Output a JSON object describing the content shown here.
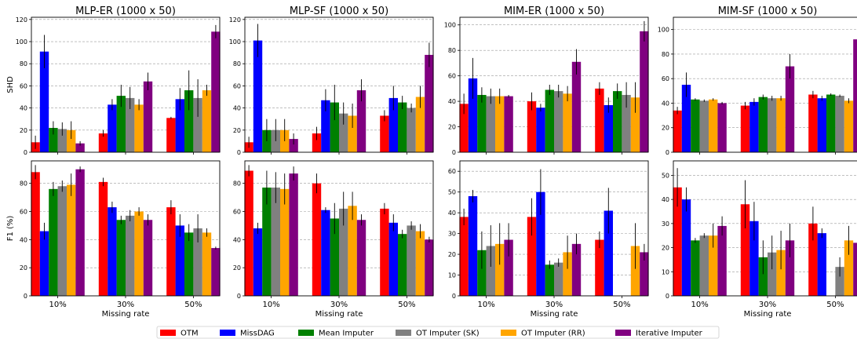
{
  "chart_data": {
    "type": "bar",
    "xlabel": "Missing rate",
    "categories": [
      "10%",
      "30%",
      "50%"
    ],
    "series_names": [
      "OTM",
      "MissDAG",
      "Mean Imputer",
      "OT Imputer (SK)",
      "OT Imputer (RR)",
      "Iterative Imputer"
    ],
    "colors": [
      "#ff0000",
      "#0000ff",
      "#008000",
      "#808080",
      "#ffa500",
      "#800080"
    ],
    "grid": "y-dashed",
    "legend_position": "bottom-center",
    "panels": [
      {
        "title": "MLP-ER (1000 x 50)",
        "ylabel": "SHD",
        "ylim": [
          0,
          122
        ],
        "yticks": [
          0,
          20,
          40,
          60,
          80,
          100,
          120
        ],
        "values": [
          [
            9,
            91,
            22,
            21,
            20,
            8
          ],
          [
            17,
            43,
            51,
            49,
            43,
            64
          ],
          [
            31,
            48,
            56,
            49,
            56,
            109
          ]
        ],
        "errors": [
          [
            6,
            15,
            6,
            6,
            8,
            2
          ],
          [
            3,
            5,
            10,
            10,
            5,
            8
          ],
          [
            1,
            10,
            18,
            17,
            5,
            6
          ]
        ]
      },
      {
        "title": "MLP-SF (1000 x 50)",
        "ylabel": "",
        "ylim": [
          0,
          122
        ],
        "yticks": [
          0,
          20,
          40,
          60,
          80,
          100,
          120
        ],
        "values": [
          [
            9,
            101,
            20,
            20,
            20,
            12
          ],
          [
            17,
            47,
            45,
            35,
            33,
            56
          ],
          [
            33,
            49,
            45,
            40,
            50,
            88
          ]
        ],
        "errors": [
          [
            5,
            15,
            10,
            10,
            10,
            5
          ],
          [
            6,
            10,
            16,
            10,
            11,
            10
          ],
          [
            5,
            11,
            6,
            4,
            10,
            11
          ]
        ]
      },
      {
        "title": "MIM-ER (1000 x 50)",
        "ylabel": "",
        "ylim": [
          0,
          106
        ],
        "yticks": [
          0,
          20,
          40,
          60,
          80,
          100
        ],
        "values": [
          [
            38,
            58,
            45,
            44,
            44,
            44
          ],
          [
            40,
            35,
            49,
            48,
            46,
            71
          ],
          [
            50,
            37,
            48,
            45,
            43,
            95
          ]
        ],
        "errors": [
          [
            8,
            16,
            6,
            6,
            6,
            1
          ],
          [
            7,
            3,
            4,
            5,
            6,
            10
          ],
          [
            5,
            6,
            6,
            10,
            12,
            8
          ]
        ]
      },
      {
        "title": "MIM-SF (1000 x 50)",
        "ylabel": "",
        "ylim": [
          0,
          110
        ],
        "yticks": [
          0,
          20,
          40,
          60,
          80,
          100
        ],
        "values": [
          [
            34,
            55,
            43,
            42,
            43,
            40
          ],
          [
            38,
            41,
            45,
            44,
            44,
            70
          ],
          [
            47,
            44,
            47,
            46,
            42,
            92
          ]
        ],
        "errors": [
          [
            3,
            10,
            1,
            1,
            1,
            1
          ],
          [
            3,
            3,
            2,
            2,
            2,
            10
          ],
          [
            3,
            2,
            1,
            1,
            2,
            11
          ]
        ]
      },
      {
        "title": "",
        "ylabel": "F1 (%)",
        "ylim": [
          0,
          96
        ],
        "yticks": [
          0,
          20,
          40,
          60,
          80
        ],
        "values": [
          [
            88,
            46,
            76,
            78,
            79,
            90
          ],
          [
            81,
            63,
            54,
            57,
            60,
            54
          ],
          [
            63,
            50,
            45,
            48,
            45,
            34
          ]
        ],
        "errors": [
          [
            5,
            6,
            5,
            4,
            8,
            2
          ],
          [
            3,
            4,
            3,
            4,
            3,
            4
          ],
          [
            5,
            8,
            6,
            10,
            3,
            1
          ]
        ]
      },
      {
        "title": "",
        "ylabel": "",
        "ylim": [
          0,
          96
        ],
        "yticks": [
          0,
          20,
          40,
          60,
          80
        ],
        "values": [
          [
            89,
            48,
            77,
            77,
            76,
            87
          ],
          [
            80,
            61,
            55,
            62,
            64,
            54
          ],
          [
            62,
            52,
            44,
            50,
            46,
            40
          ]
        ],
        "errors": [
          [
            4,
            4,
            12,
            11,
            11,
            5
          ],
          [
            7,
            2,
            11,
            12,
            10,
            4
          ],
          [
            4,
            6,
            3,
            3,
            5,
            2
          ]
        ]
      },
      {
        "title": "",
        "ylabel": "",
        "ylim": [
          0,
          65
        ],
        "yticks": [
          0,
          10,
          20,
          30,
          40,
          50,
          60
        ],
        "values": [
          [
            38,
            48,
            22,
            24,
            25,
            27
          ],
          [
            38,
            50,
            15,
            16,
            21,
            25
          ],
          [
            27,
            41,
            null,
            null,
            24,
            21
          ]
        ],
        "errors": [
          [
            4,
            3,
            9,
            10,
            10,
            8
          ],
          [
            9,
            11,
            2,
            2,
            8,
            5
          ],
          [
            4,
            11,
            null,
            null,
            11,
            4
          ]
        ]
      },
      {
        "title": "",
        "ylabel": "",
        "ylim": [
          0,
          56
        ],
        "yticks": [
          0,
          10,
          20,
          30,
          40,
          50
        ],
        "values": [
          [
            45,
            40,
            23,
            25,
            25,
            29
          ],
          [
            38,
            31,
            16,
            18,
            19,
            23
          ],
          [
            30,
            26,
            null,
            12,
            23,
            22
          ]
        ],
        "errors": [
          [
            8,
            5,
            1,
            1,
            5,
            4
          ],
          [
            10,
            8,
            7,
            7,
            8,
            7
          ],
          [
            7,
            2,
            null,
            4,
            6,
            4
          ]
        ]
      }
    ]
  }
}
